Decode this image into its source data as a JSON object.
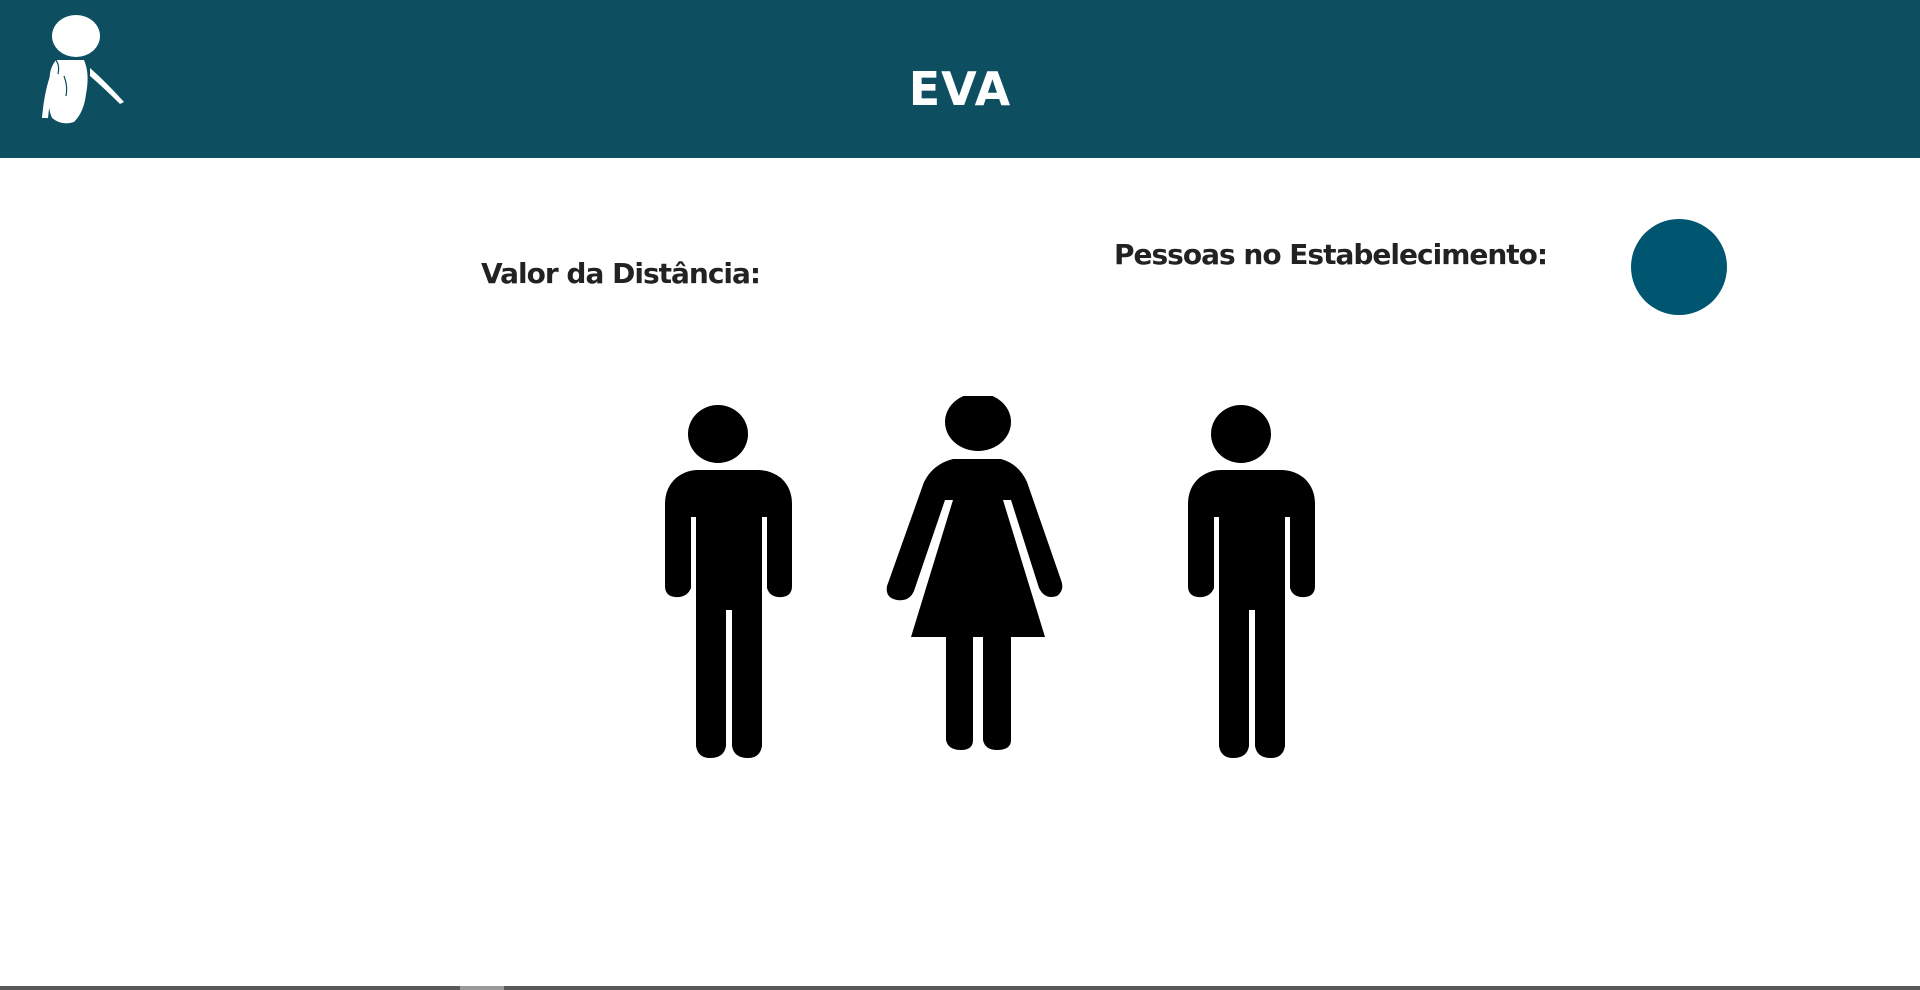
{
  "header": {
    "title": "EVA",
    "background_color": "#0d4f61",
    "logo_icon": "eva-robot-logo-icon"
  },
  "main": {
    "distance_label": "Valor da Distância:",
    "people_label": "Pessoas no Estabelecimento:",
    "people_indicator_color": "#005570",
    "figures": [
      {
        "type": "man",
        "icon": "man-icon"
      },
      {
        "type": "woman",
        "icon": "woman-icon"
      },
      {
        "type": "man",
        "icon": "man-icon"
      }
    ]
  }
}
